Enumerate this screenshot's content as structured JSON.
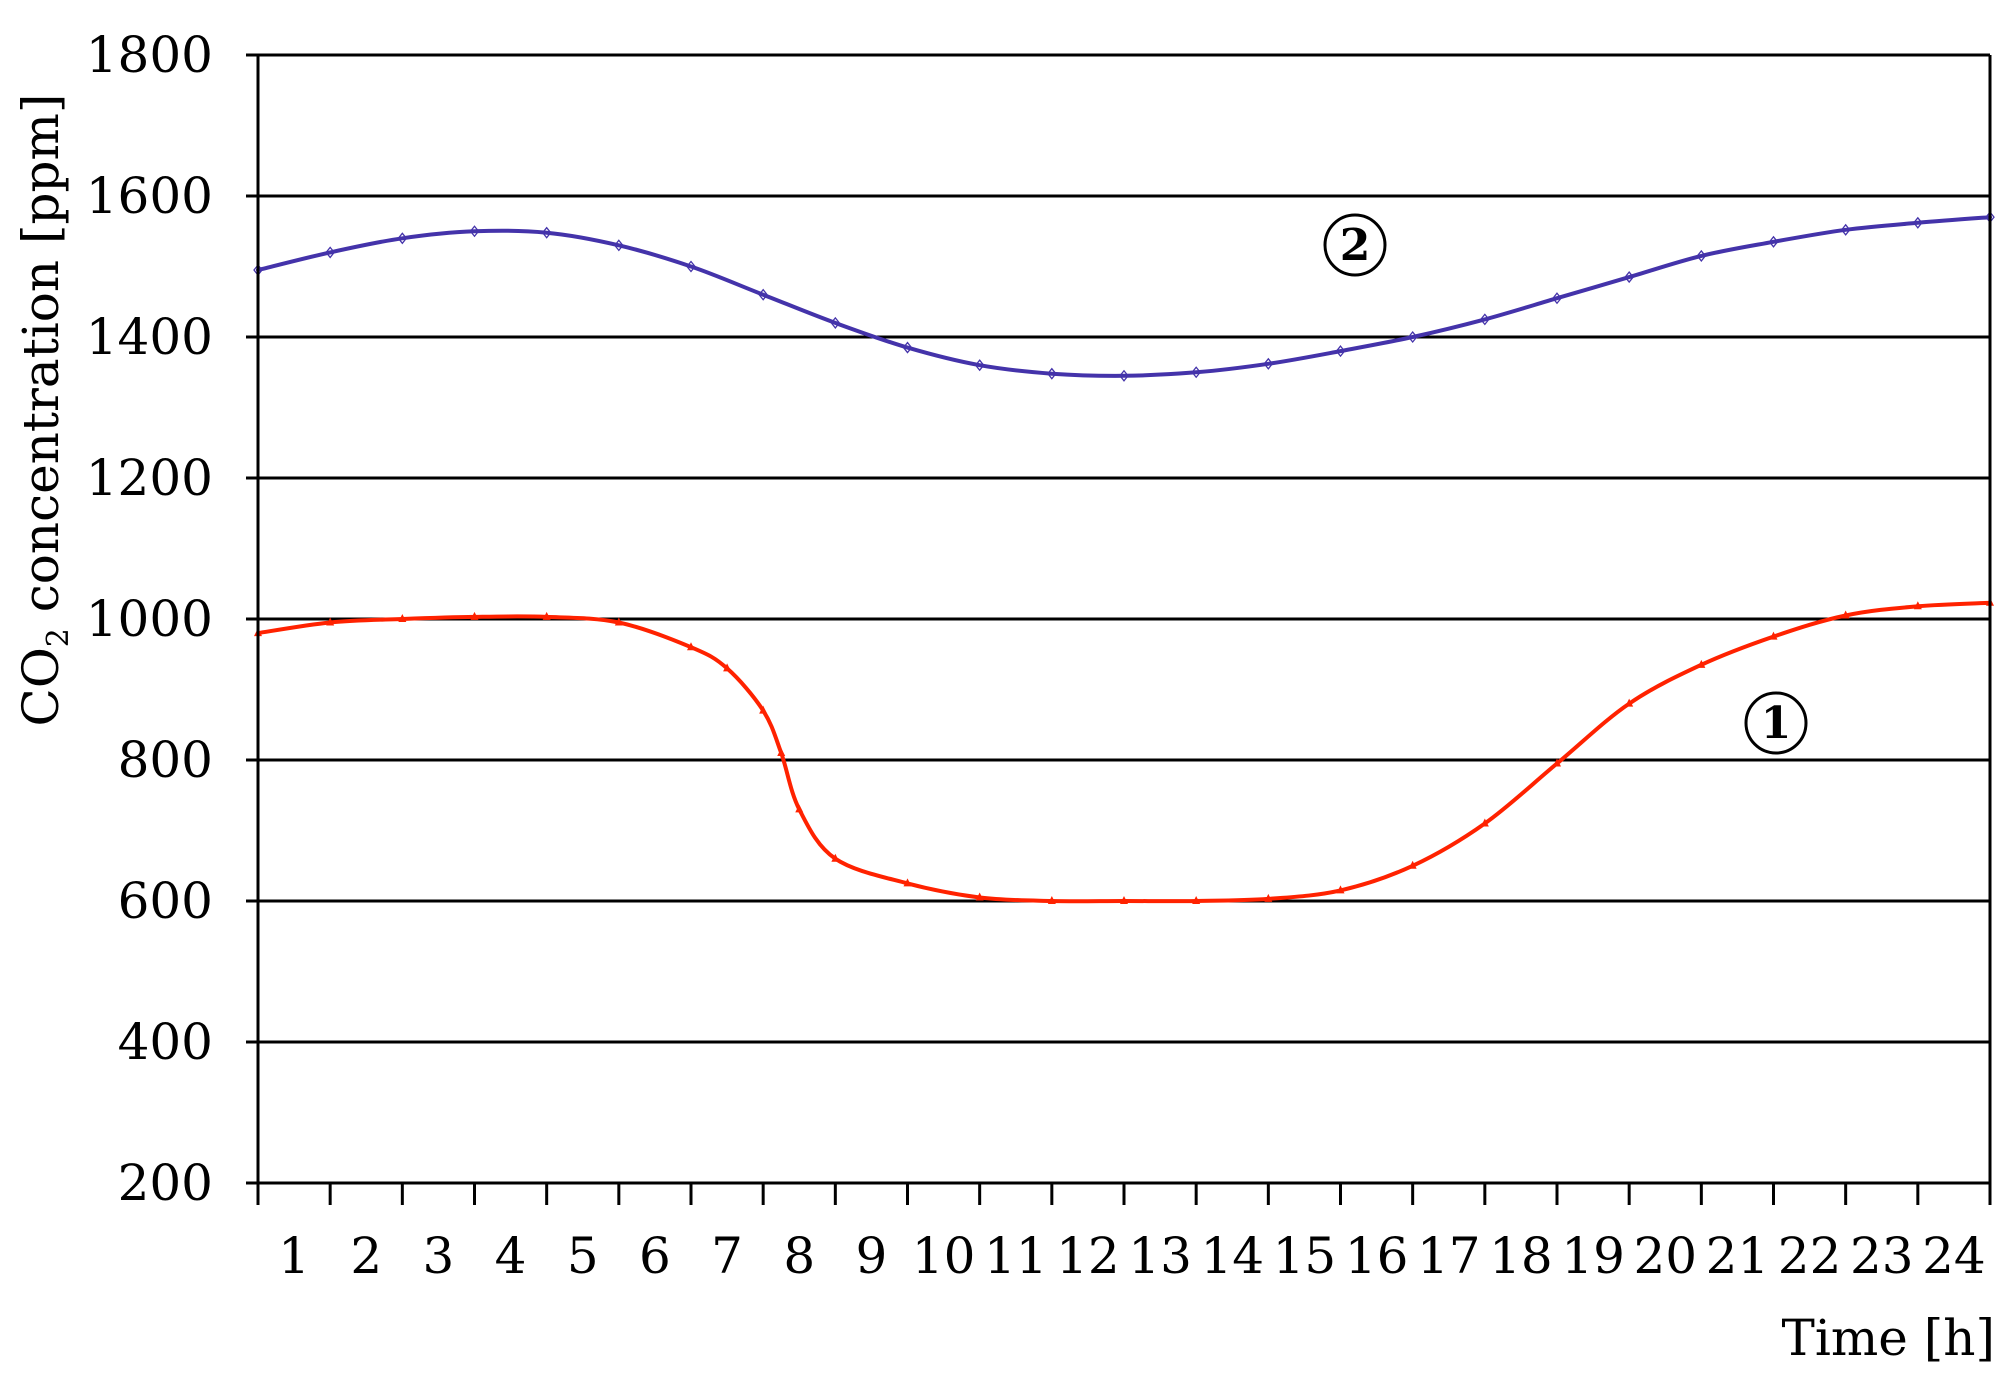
{
  "chart_data": {
    "type": "line",
    "title": "",
    "xlabel": "Time [h]",
    "ylabel_main": "CO",
    "ylabel_sub": "2",
    "ylabel_rest": " concentration [ppm]",
    "ylim": [
      200,
      1800
    ],
    "xlim": [
      0,
      24
    ],
    "yticks": [
      200,
      400,
      600,
      800,
      1000,
      1200,
      1400,
      1600,
      1800
    ],
    "xticks": [
      "1",
      "2",
      "3",
      "4",
      "5",
      "6",
      "7",
      "8",
      "9",
      "10",
      "11",
      "12",
      "13",
      "14",
      "15",
      "16",
      "17",
      "18",
      "19",
      "20",
      "21",
      "22",
      "23",
      "24"
    ],
    "grid": "horizontal",
    "series": [
      {
        "marker_label": "1",
        "color": "#ff2200",
        "marker_style": "triangle",
        "x": [
          0,
          1,
          2,
          3,
          4,
          5,
          6,
          6.5,
          7,
          7.25,
          7.5,
          8,
          9,
          10,
          11,
          12,
          13,
          14,
          15,
          16,
          17,
          18,
          19,
          20,
          21,
          22,
          23,
          24
        ],
        "values": [
          980,
          995,
          1000,
          1003,
          1003,
          995,
          960,
          930,
          870,
          810,
          730,
          660,
          625,
          605,
          600,
          600,
          600,
          603,
          615,
          650,
          710,
          795,
          880,
          935,
          975,
          1005,
          1018,
          1023
        ]
      },
      {
        "marker_label": "2",
        "color": "#4433aa",
        "marker_style": "diamond",
        "x": [
          0,
          1,
          2,
          3,
          4,
          5,
          6,
          7,
          8,
          9,
          10,
          11,
          12,
          13,
          14,
          15,
          16,
          17,
          18,
          19,
          20,
          21,
          22,
          23,
          24
        ],
        "values": [
          1495,
          1520,
          1540,
          1550,
          1548,
          1530,
          1500,
          1460,
          1420,
          1385,
          1360,
          1348,
          1345,
          1350,
          1362,
          1380,
          1400,
          1425,
          1455,
          1485,
          1515,
          1535,
          1552,
          1562,
          1570
        ]
      }
    ]
  }
}
